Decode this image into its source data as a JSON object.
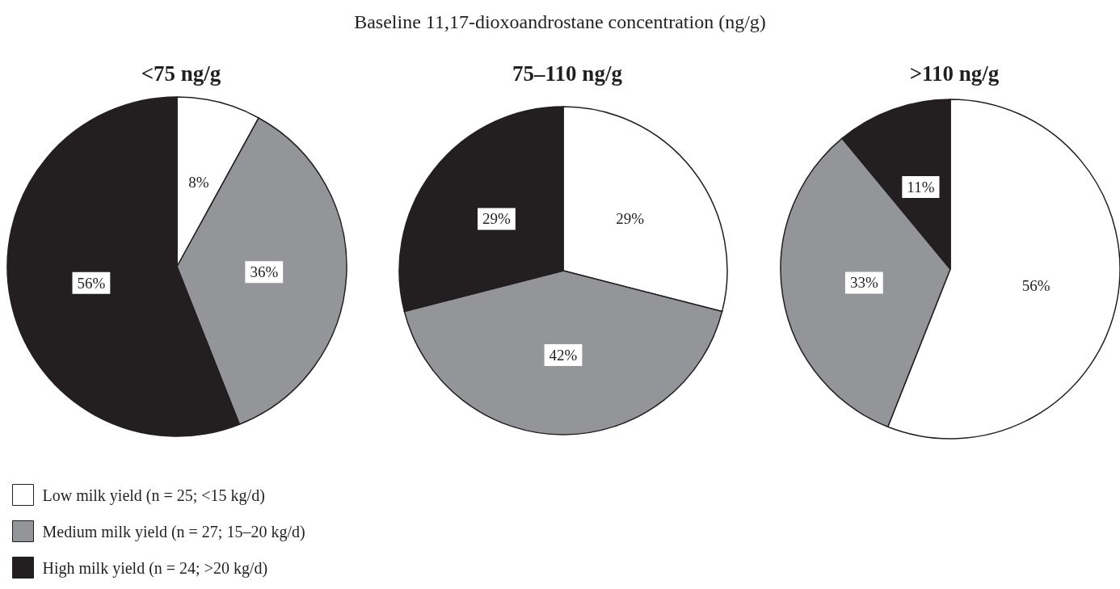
{
  "chart_data": [
    {
      "type": "pie",
      "title": "<75 ng/g",
      "annotations": [
        "Baseline 11,17-dioxoandrostane concentration (ng/g)"
      ],
      "categories": [
        "Low milk yield (n = 25; <15 kg/d)",
        "Medium milk yield (n = 27; 15–20 kg/d)",
        "High milk yield (n = 24; >20 kg/d)"
      ],
      "values": [
        8,
        36,
        56
      ],
      "value_labels": [
        "8%",
        "36%",
        "56%"
      ],
      "colors": [
        "#ffffff",
        "#939598",
        "#231f20"
      ],
      "legend": "bottom left"
    },
    {
      "type": "pie",
      "title": "75–110 ng/g",
      "categories": [
        null,
        null,
        null
      ],
      "values": [
        29,
        42,
        29
      ],
      "value_labels": [
        "29%",
        "42%",
        "29%"
      ],
      "colors": [
        "#ffffff",
        "#939598",
        "#231f20"
      ]
    },
    {
      "type": "pie",
      "title": ">110 ng/g",
      "categories": [
        null,
        null,
        null
      ],
      "values": [
        56,
        33,
        11
      ],
      "value_labels": [
        "56%",
        "33%",
        "11%"
      ],
      "colors": [
        "#ffffff",
        "#939598",
        "#231f20"
      ]
    }
  ]
}
